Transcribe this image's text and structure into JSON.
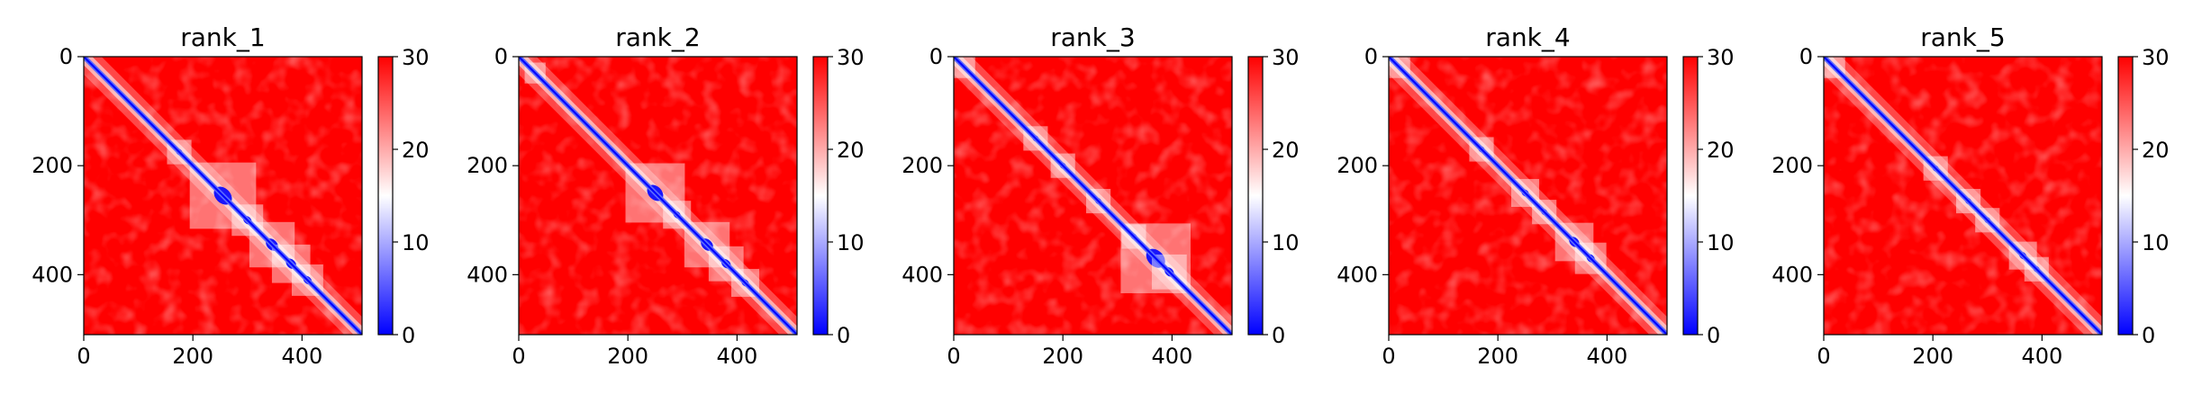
{
  "chart_data": [
    {
      "type": "heatmap",
      "title": "rank_1",
      "xlim": [
        0,
        510
      ],
      "ylim": [
        510,
        0
      ],
      "x_ticks": [
        0,
        200,
        400
      ],
      "y_ticks": [
        0,
        200,
        400
      ],
      "colorbar": {
        "min": 0,
        "max": 30,
        "ticks": [
          0,
          10,
          20,
          30
        ],
        "colormap": "bwr",
        "colors": [
          "#0000ff",
          "#ffffff",
          "#ff0000"
        ]
      },
      "diagonal_features": [
        {
          "pos": 255,
          "size": 38
        },
        {
          "pos": 300,
          "size": 18
        },
        {
          "pos": 345,
          "size": 26
        },
        {
          "pos": 380,
          "size": 22
        },
        {
          "pos": 410,
          "size": 18
        },
        {
          "pos": 175,
          "size": 14
        }
      ]
    },
    {
      "type": "heatmap",
      "title": "rank_2",
      "xlim": [
        0,
        510
      ],
      "ylim": [
        510,
        0
      ],
      "x_ticks": [
        0,
        200,
        400
      ],
      "y_ticks": [
        0,
        200,
        400
      ],
      "colorbar": {
        "min": 0,
        "max": 30,
        "ticks": [
          0,
          10,
          20,
          30
        ],
        "colormap": "bwr",
        "colors": [
          "#0000ff",
          "#ffffff",
          "#ff0000"
        ]
      },
      "diagonal_features": [
        {
          "pos": 250,
          "size": 34
        },
        {
          "pos": 290,
          "size": 16
        },
        {
          "pos": 345,
          "size": 26
        },
        {
          "pos": 380,
          "size": 20
        },
        {
          "pos": 415,
          "size": 16
        },
        {
          "pos": 30,
          "size": 12
        }
      ]
    },
    {
      "type": "heatmap",
      "title": "rank_3",
      "xlim": [
        0,
        510
      ],
      "ylim": [
        510,
        0
      ],
      "x_ticks": [
        0,
        200,
        400
      ],
      "y_ticks": [
        0,
        200,
        400
      ],
      "colorbar": {
        "min": 0,
        "max": 30,
        "ticks": [
          0,
          10,
          20,
          30
        ],
        "colormap": "bwr",
        "colors": [
          "#0000ff",
          "#ffffff",
          "#ff0000"
        ]
      },
      "diagonal_features": [
        {
          "pos": 150,
          "size": 14
        },
        {
          "pos": 200,
          "size": 14
        },
        {
          "pos": 265,
          "size": 14
        },
        {
          "pos": 330,
          "size": 14
        },
        {
          "pos": 370,
          "size": 40
        },
        {
          "pos": 395,
          "size": 20
        },
        {
          "pos": 20,
          "size": 12
        }
      ]
    },
    {
      "type": "heatmap",
      "title": "rank_4",
      "xlim": [
        0,
        510
      ],
      "ylim": [
        510,
        0
      ],
      "x_ticks": [
        0,
        200,
        400
      ],
      "y_ticks": [
        0,
        200,
        400
      ],
      "colorbar": {
        "min": 0,
        "max": 30,
        "ticks": [
          0,
          10,
          20,
          30
        ],
        "colormap": "bwr",
        "colors": [
          "#0000ff",
          "#ffffff",
          "#ff0000"
        ]
      },
      "diagonal_features": [
        {
          "pos": 170,
          "size": 14
        },
        {
          "pos": 250,
          "size": 16
        },
        {
          "pos": 285,
          "size": 14
        },
        {
          "pos": 340,
          "size": 22
        },
        {
          "pos": 370,
          "size": 18
        },
        {
          "pos": 20,
          "size": 12
        }
      ]
    },
    {
      "type": "heatmap",
      "title": "rank_5",
      "xlim": [
        0,
        510
      ],
      "ylim": [
        510,
        0
      ],
      "x_ticks": [
        0,
        200,
        400
      ],
      "y_ticks": [
        0,
        200,
        400
      ],
      "colorbar": {
        "min": 0,
        "max": 30,
        "ticks": [
          0,
          10,
          20,
          30
        ],
        "colormap": "bwr",
        "colors": [
          "#0000ff",
          "#ffffff",
          "#ff0000"
        ]
      },
      "diagonal_features": [
        {
          "pos": 205,
          "size": 14
        },
        {
          "pos": 265,
          "size": 14
        },
        {
          "pos": 300,
          "size": 14
        },
        {
          "pos": 365,
          "size": 16
        },
        {
          "pos": 390,
          "size": 14
        },
        {
          "pos": 20,
          "size": 12
        }
      ]
    }
  ]
}
